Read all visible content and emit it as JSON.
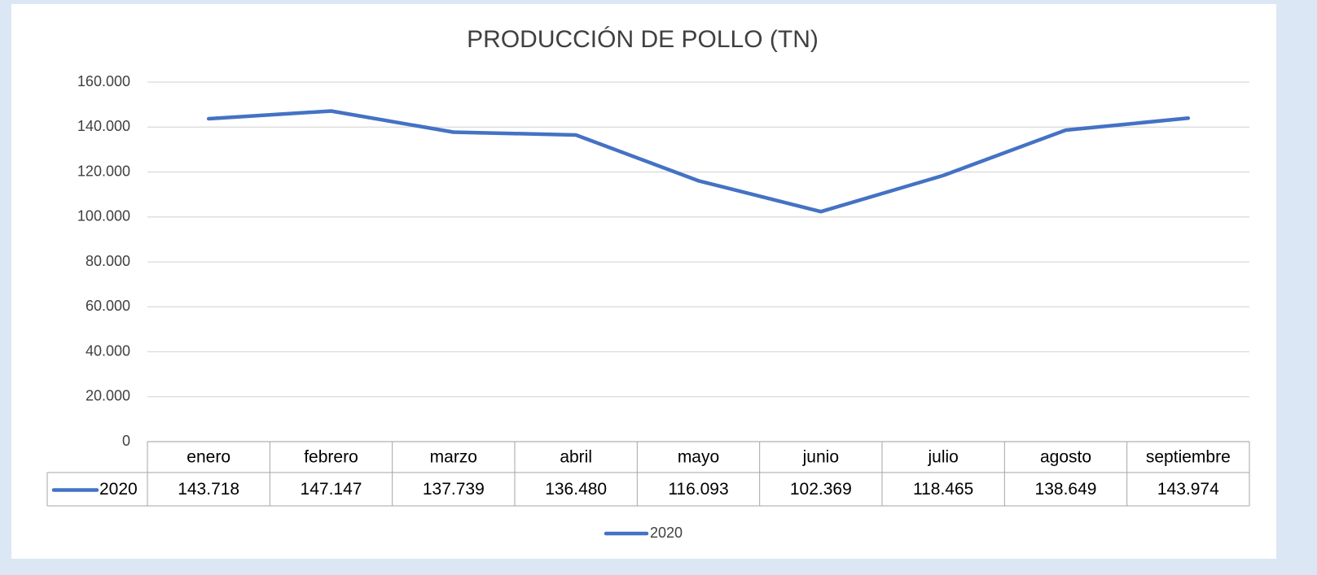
{
  "chart_data": {
    "type": "line",
    "title": "PRODUCCIÓN DE POLLO (TN)",
    "categories": [
      "enero",
      "febrero",
      "marzo",
      "abril",
      "mayo",
      "junio",
      "julio",
      "agosto",
      "septiembre"
    ],
    "series": [
      {
        "name": "2020",
        "color": "#4472c4",
        "values": [
          143718,
          147147,
          137739,
          136480,
          116093,
          102369,
          118465,
          138649,
          143974
        ],
        "value_labels": [
          "143.718",
          "147.147",
          "137.739",
          "136.480",
          "116.093",
          "102.369",
          "118.465",
          "138.649",
          "143.974"
        ]
      }
    ],
    "ylim": [
      0,
      160000
    ],
    "yticks": [
      0,
      {
        "value": 20000,
        "label": "20.000"
      },
      {
        "value": 40000,
        "label": "40.000"
      },
      {
        "value": 60000,
        "label": "60.000"
      },
      {
        "value": 80000,
        "label": "80.000"
      },
      {
        "value": 100000,
        "label": "100.000"
      },
      {
        "value": 120000,
        "label": "120.000"
      },
      {
        "value": 140000,
        "label": "140.000"
      },
      {
        "value": 160000,
        "label": "160.000"
      }
    ],
    "grid": true,
    "legend": "bottom",
    "data_table": true
  }
}
